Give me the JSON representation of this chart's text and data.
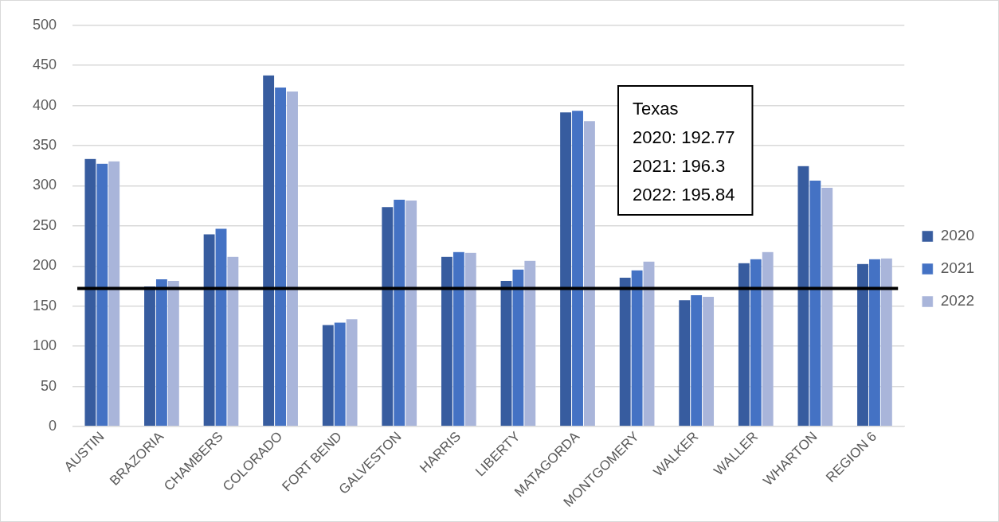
{
  "chart_data": {
    "type": "bar",
    "categories": [
      "AUSTIN",
      "BRAZORIA",
      "CHAMBERS",
      "COLORADO",
      "FORT BEND",
      "GALVESTON",
      "HARRIS",
      "LIBERTY",
      "MATAGORDA",
      "MONTGOMERY",
      "WALKER",
      "WALLER",
      "WHARTON",
      "REGION 6"
    ],
    "series": [
      {
        "name": "2020",
        "color": "#375c9f",
        "values": [
          334,
          175,
          240,
          438,
          127,
          274,
          212,
          182,
          392,
          186,
          158,
          204,
          325,
          203
        ]
      },
      {
        "name": "2021",
        "color": "#4472c4",
        "values": [
          328,
          184,
          247,
          423,
          130,
          283,
          218,
          196,
          394,
          195,
          164,
          209,
          307,
          209
        ]
      },
      {
        "name": "2022",
        "color": "#a9b5da",
        "values": [
          331,
          182,
          212,
          418,
          134,
          282,
          217,
          207,
          381,
          206,
          162,
          218,
          298,
          210
        ]
      }
    ],
    "ylim": [
      0,
      500
    ],
    "yticks": [
      0,
      50,
      100,
      150,
      200,
      250,
      300,
      350,
      400,
      450,
      500
    ],
    "grid": "y",
    "legend": "right",
    "ref_lines": [
      {
        "axis": "y",
        "value": 172,
        "color": "#000000"
      }
    ],
    "annotations": [
      "Texas",
      "2020: 192.77",
      "2021: 196.3",
      "2022: 195.84"
    ]
  }
}
